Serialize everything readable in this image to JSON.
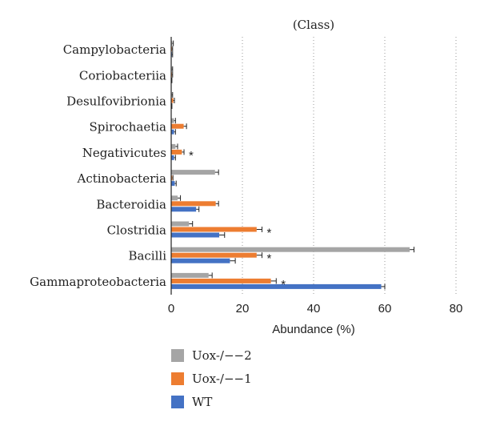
{
  "chart_data": {
    "type": "bar",
    "orientation": "horizontal",
    "title": "(Class)",
    "xlabel": "Abundance (%)",
    "ylabel": "",
    "xlim": [
      0,
      80
    ],
    "xticks": [
      0,
      20,
      40,
      60,
      80
    ],
    "grid": "vertical dotted",
    "legend_position": "bottom-left",
    "categories": [
      "Campylobacteria",
      "Coriobacteriia",
      "Desulfovibrionia",
      "Spirochaetia",
      "Negativicutes",
      "Actinobacteria",
      "Bacteroidia",
      "Clostridia",
      "Bacilli",
      "Gammaproteobacteria"
    ],
    "series": [
      {
        "name": "Uox-/−−2",
        "color": "#a5a5a5",
        "values": [
          0.3,
          0.2,
          0.2,
          0.8,
          1.2,
          12.3,
          1.8,
          5.0,
          67.0,
          10.5
        ],
        "errors": [
          0.3,
          0.2,
          0.2,
          0.4,
          0.6,
          1.0,
          0.8,
          1.0,
          1.2,
          1.0
        ]
      },
      {
        "name": "Uox-/−−1",
        "color": "#ed7d31",
        "values": [
          0.2,
          0.2,
          0.6,
          3.5,
          3.0,
          0.3,
          12.5,
          24.0,
          24.0,
          28.0
        ],
        "errors": [
          0.2,
          0.2,
          0.3,
          0.8,
          0.6,
          0.2,
          0.8,
          1.5,
          1.5,
          1.5
        ]
      },
      {
        "name": "WT",
        "color": "#4472c4",
        "values": [
          0.2,
          0.1,
          0.1,
          0.8,
          0.8,
          1.0,
          7.0,
          13.5,
          16.5,
          59.0
        ],
        "errors": [
          0.2,
          0.1,
          0.1,
          0.4,
          0.4,
          0.4,
          0.8,
          1.5,
          1.5,
          1.0
        ]
      }
    ],
    "significance": [
      {
        "category": "Negativicutes",
        "label": "*"
      },
      {
        "category": "Clostridia",
        "label": "*"
      },
      {
        "category": "Bacilli",
        "label": "*"
      },
      {
        "category": "Gammaproteobacteria",
        "label": "*"
      }
    ]
  }
}
